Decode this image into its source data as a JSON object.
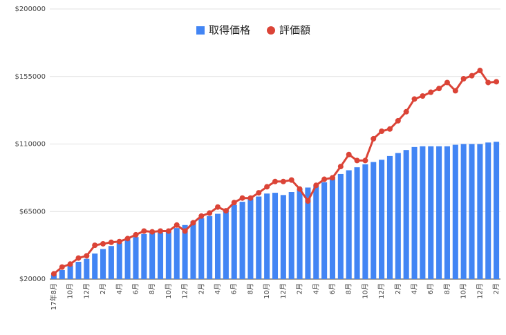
{
  "chart_data": {
    "type": "combo",
    "categories": [
      "17年8月",
      null,
      "10月",
      null,
      "12月",
      null,
      "2月",
      null,
      "4月",
      null,
      "6月",
      null,
      "8月",
      null,
      "10月",
      null,
      "12月",
      null,
      "2月",
      null,
      "4月",
      null,
      "6月",
      null,
      "8月",
      null,
      "10月",
      null,
      "12月",
      null,
      "2月",
      null,
      "4月",
      null,
      "6月",
      null,
      "8月",
      null,
      "10月",
      null,
      "12月",
      null,
      "2月",
      null,
      "4月",
      null,
      "6月",
      null,
      "8月",
      null,
      "10月",
      null,
      "12月",
      null,
      "2月"
    ],
    "series": [
      {
        "name": "取得価格",
        "type": "bar",
        "color": "#4285f4",
        "values": [
          23000,
          26000,
          29000,
          31500,
          33500,
          37000,
          40000,
          42000,
          44000,
          46000,
          48000,
          50000,
          51000,
          51000,
          51500,
          54000,
          56000,
          58500,
          60500,
          62000,
          63500,
          66500,
          69500,
          71500,
          73500,
          75000,
          77000,
          77500,
          76000,
          78000,
          80000,
          81000,
          82000,
          84500,
          87000,
          90000,
          92500,
          94500,
          96500,
          98000,
          99500,
          102000,
          104000,
          106000,
          108000,
          108500,
          108500,
          108500,
          108500,
          109500,
          110000,
          110000,
          110000,
          111000,
          111500
        ]
      },
      {
        "name": "評価額",
        "type": "line",
        "color": "#db4437",
        "values": [
          23500,
          28000,
          30000,
          34000,
          35500,
          42500,
          43500,
          44500,
          45000,
          47000,
          49500,
          52000,
          51500,
          52000,
          52000,
          56000,
          52000,
          57500,
          62000,
          64000,
          68000,
          65500,
          71000,
          74000,
          74000,
          77500,
          81500,
          85000,
          85000,
          86000,
          80000,
          72000,
          82500,
          86500,
          87500,
          95000,
          103000,
          99000,
          99000,
          113500,
          118500,
          120000,
          125500,
          131500,
          140000,
          142000,
          144500,
          147000,
          151000,
          145500,
          153500,
          155500,
          159000,
          151000,
          151500
        ]
      }
    ],
    "ylim": [
      20000,
      200000
    ],
    "yticks": [
      {
        "value": 20000,
        "label": "$20000"
      },
      {
        "value": 65000,
        "label": "$65000"
      },
      {
        "value": 110000,
        "label": "$110000"
      },
      {
        "value": 155000,
        "label": "$155000"
      },
      {
        "value": 200000,
        "label": "$200000"
      }
    ],
    "grid": true,
    "legend": "top"
  }
}
